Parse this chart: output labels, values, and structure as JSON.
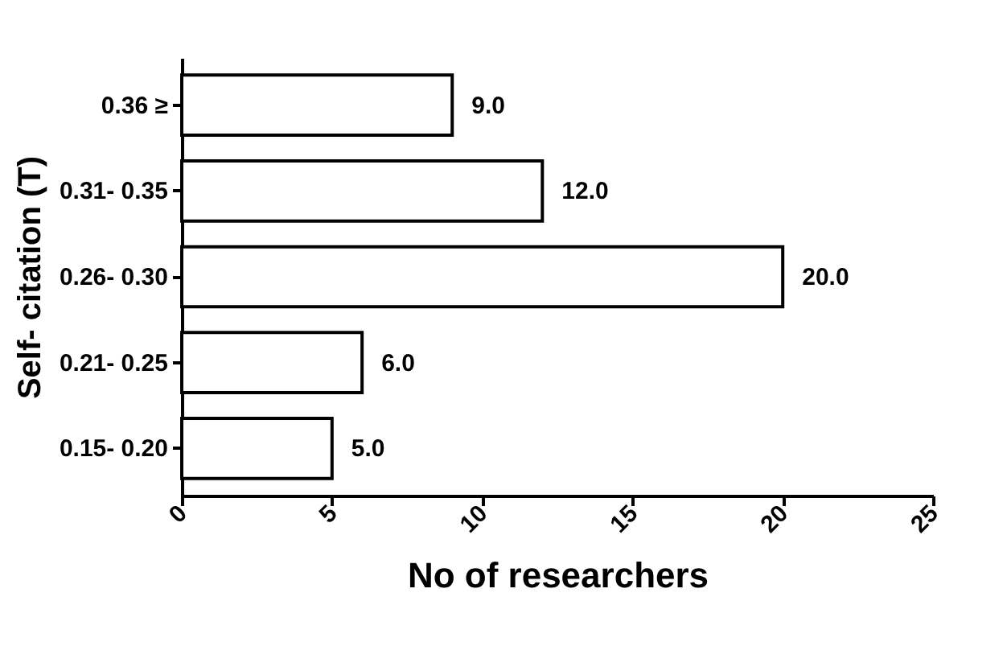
{
  "chart_data": {
    "type": "bar",
    "orientation": "horizontal",
    "xlabel": "No of researchers",
    "ylabel": "Self- citation (T)",
    "categories": [
      "0.36 ≥",
      "0.31- 0.35",
      "0.26- 0.30",
      "0.21- 0.25",
      "0.15- 0.20"
    ],
    "values": [
      9,
      12,
      20,
      6,
      5
    ],
    "value_labels": [
      "9.0",
      "12.0",
      "20.0",
      "6.0",
      "5.0"
    ],
    "color": "#ffffff",
    "xlim": [
      0,
      25
    ],
    "xticks": [
      0,
      5,
      10,
      15,
      20,
      25
    ],
    "grid": false
  }
}
